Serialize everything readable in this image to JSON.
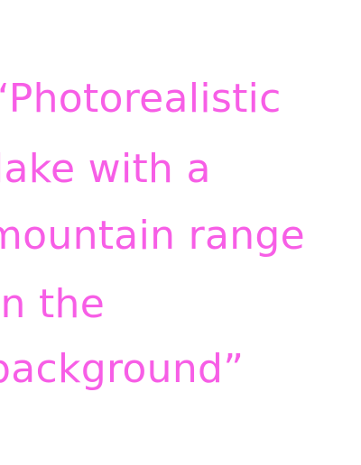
{
  "quote": {
    "lines": [
      "“Photorealistic",
      "lake with a",
      "mountain range",
      "in the",
      "background”"
    ]
  },
  "colors": {
    "text": "#f75ee6",
    "background": "#ffffff"
  }
}
